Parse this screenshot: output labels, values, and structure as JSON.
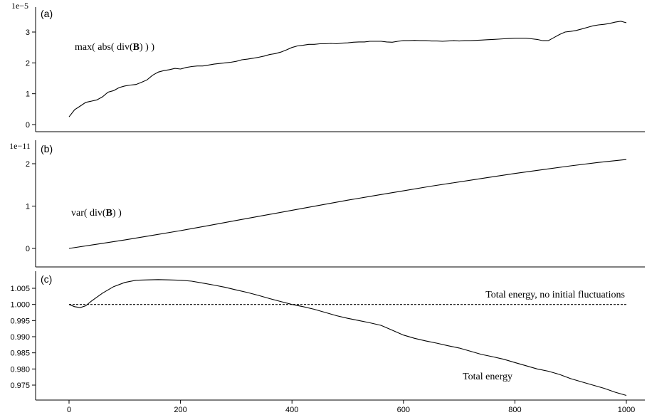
{
  "chart_data": [
    {
      "type": "line",
      "panel_label": "(a)",
      "scale_label": "1e−5",
      "xlim": [
        0,
        1000
      ],
      "ylim": [
        0,
        3.2
      ],
      "yticks": [
        0,
        1,
        2,
        3
      ],
      "ytick_labels": [
        "0",
        "1",
        "2",
        "3"
      ],
      "show_xticks": false,
      "annotations": [
        {
          "parts": [
            {
              "t": "max( abs( div("
            },
            {
              "t": "B",
              "b": true
            },
            {
              "t": ") ) )"
            }
          ]
        }
      ],
      "series": [
        {
          "style": "solid",
          "x": [
            0,
            10,
            20,
            30,
            40,
            50,
            60,
            70,
            80,
            90,
            100,
            110,
            120,
            130,
            140,
            150,
            160,
            170,
            180,
            190,
            200,
            210,
            220,
            230,
            240,
            250,
            260,
            270,
            280,
            290,
            300,
            310,
            320,
            330,
            340,
            350,
            360,
            370,
            380,
            390,
            400,
            410,
            420,
            430,
            440,
            450,
            460,
            470,
            480,
            490,
            500,
            510,
            520,
            530,
            540,
            550,
            560,
            570,
            580,
            590,
            600,
            610,
            620,
            630,
            640,
            650,
            660,
            670,
            680,
            690,
            700,
            710,
            720,
            730,
            740,
            750,
            760,
            770,
            780,
            790,
            800,
            810,
            820,
            830,
            840,
            850,
            860,
            870,
            880,
            890,
            900,
            910,
            920,
            930,
            940,
            950,
            960,
            970,
            980,
            990,
            1000
          ],
          "values": [
            0.25,
            0.48,
            0.6,
            0.72,
            0.76,
            0.8,
            0.9,
            1.05,
            1.1,
            1.2,
            1.25,
            1.28,
            1.3,
            1.37,
            1.45,
            1.6,
            1.7,
            1.75,
            1.78,
            1.82,
            1.8,
            1.85,
            1.88,
            1.9,
            1.9,
            1.93,
            1.96,
            1.98,
            2.0,
            2.02,
            2.05,
            2.1,
            2.12,
            2.15,
            2.18,
            2.22,
            2.27,
            2.3,
            2.35,
            2.42,
            2.5,
            2.55,
            2.57,
            2.6,
            2.6,
            2.62,
            2.62,
            2.63,
            2.62,
            2.64,
            2.65,
            2.67,
            2.68,
            2.68,
            2.7,
            2.7,
            2.7,
            2.68,
            2.67,
            2.7,
            2.72,
            2.72,
            2.73,
            2.72,
            2.72,
            2.71,
            2.71,
            2.7,
            2.71,
            2.72,
            2.71,
            2.72,
            2.72,
            2.73,
            2.74,
            2.75,
            2.76,
            2.77,
            2.78,
            2.79,
            2.8,
            2.8,
            2.8,
            2.78,
            2.76,
            2.72,
            2.72,
            2.82,
            2.92,
            3.0,
            3.02,
            3.05,
            3.1,
            3.15,
            3.2,
            3.23,
            3.25,
            3.28,
            3.32,
            3.35,
            3.3
          ]
        }
      ]
    },
    {
      "type": "line",
      "panel_label": "(b)",
      "scale_label": "1e−11",
      "xlim": [
        0,
        1000
      ],
      "ylim": [
        -0.1,
        2.3
      ],
      "yticks": [
        0,
        1,
        2
      ],
      "ytick_labels": [
        "0",
        "1",
        "2"
      ],
      "show_xticks": false,
      "annotations": [
        {
          "parts": [
            {
              "t": "var( div("
            },
            {
              "t": "B",
              "b": true
            },
            {
              "t": ") )"
            }
          ]
        }
      ],
      "series": [
        {
          "style": "solid",
          "x": [
            0,
            50,
            100,
            150,
            200,
            250,
            300,
            350,
            400,
            450,
            500,
            550,
            600,
            650,
            700,
            750,
            800,
            850,
            900,
            950,
            1000
          ],
          "values": [
            0.0,
            0.1,
            0.2,
            0.31,
            0.42,
            0.54,
            0.66,
            0.78,
            0.9,
            1.02,
            1.14,
            1.25,
            1.36,
            1.47,
            1.57,
            1.67,
            1.77,
            1.86,
            1.95,
            2.03,
            2.1
          ]
        }
      ]
    },
    {
      "type": "line",
      "panel_label": "(c)",
      "xlim": [
        0,
        1000
      ],
      "ylim": [
        0.972,
        1.009
      ],
      "yticks": [
        0.975,
        0.98,
        0.985,
        0.99,
        0.995,
        1.0,
        1.005
      ],
      "ytick_labels": [
        "0.975",
        "0.980",
        "0.985",
        "0.990",
        "0.995",
        "1.000",
        "1.005"
      ],
      "show_xticks": true,
      "xticks": [
        0,
        200,
        400,
        600,
        800,
        1000
      ],
      "xtick_labels": [
        "0",
        "200",
        "400",
        "600",
        "800",
        "1000"
      ],
      "annotations": [
        {
          "parts": [
            {
              "t": "Total energy, no initial fluctuations"
            }
          ]
        },
        {
          "parts": [
            {
              "t": "Total energy"
            }
          ]
        }
      ],
      "series": [
        {
          "name": "Total energy, no initial fluctuations",
          "style": "dashed",
          "x": [
            0,
            1000
          ],
          "values": [
            1.0,
            1.0
          ]
        },
        {
          "name": "Total energy",
          "style": "solid",
          "x": [
            0,
            10,
            20,
            30,
            40,
            60,
            80,
            100,
            120,
            140,
            160,
            180,
            200,
            220,
            240,
            260,
            280,
            300,
            320,
            340,
            360,
            380,
            400,
            420,
            440,
            460,
            480,
            500,
            520,
            540,
            560,
            580,
            600,
            620,
            640,
            660,
            680,
            700,
            720,
            740,
            760,
            780,
            800,
            820,
            840,
            860,
            880,
            900,
            920,
            940,
            960,
            980,
            1000
          ],
          "values": [
            1.0,
            0.9993,
            0.999,
            0.9996,
            1.001,
            1.0035,
            1.0055,
            1.0068,
            1.0075,
            1.0076,
            1.0077,
            1.0076,
            1.0075,
            1.0072,
            1.0066,
            1.006,
            1.0053,
            1.0045,
            1.0037,
            1.0028,
            1.0018,
            1.0009,
            1.0,
            0.9993,
            0.9985,
            0.9975,
            0.9965,
            0.9957,
            0.995,
            0.9943,
            0.9935,
            0.992,
            0.9905,
            0.9895,
            0.9887,
            0.988,
            0.9872,
            0.9865,
            0.9855,
            0.9845,
            0.9838,
            0.983,
            0.982,
            0.981,
            0.98,
            0.9793,
            0.9783,
            0.977,
            0.976,
            0.975,
            0.974,
            0.9728,
            0.9718
          ]
        }
      ]
    }
  ]
}
